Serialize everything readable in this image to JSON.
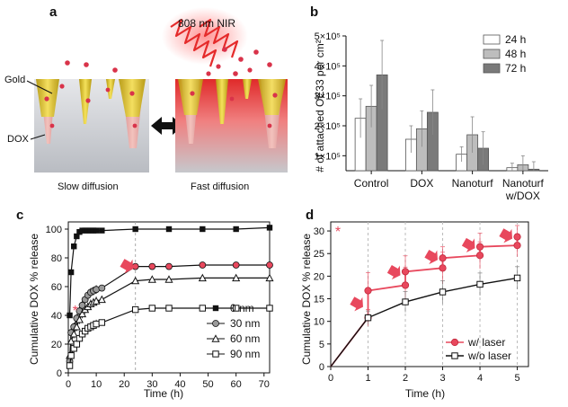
{
  "panel_a": {
    "label": "a",
    "nir_label": "808 nm NIR",
    "gold_label": "Gold",
    "dox_label": "DOX",
    "left_caption": "Slow diffusion",
    "right_caption": "Fast diffusion"
  },
  "colors": {
    "bar_24h": "#ffffff",
    "bar_48h": "#bdbdbd",
    "bar_72h": "#7a7a7a",
    "laser": "#e8485d",
    "no_laser": "#111111",
    "arrow": "#e8485d"
  },
  "chart_data": [
    {
      "id": "b",
      "panel_label": "b",
      "type": "bar",
      "ylabel": "# of attached OE33 per cm²",
      "ylim": [
        50000,
        500000
      ],
      "yticks": [
        100000,
        200000,
        300000,
        400000,
        500000
      ],
      "ytick_labels": [
        "1×10⁵",
        "2×10⁵",
        "3×10⁵",
        "4×10⁵",
        "5×10⁵"
      ],
      "categories": [
        "Control",
        "DOX",
        "Nanoturf",
        "Nanoturf\nw/DOX"
      ],
      "category_labels": [
        "Control",
        "DOX",
        "Nanoturf",
        "Nanoturf",
        "w/DOX"
      ],
      "series": [
        {
          "name": "24 h",
          "values": [
            225000,
            155000,
            105000,
            60000
          ],
          "errors": [
            65000,
            45000,
            25000,
            15000
          ]
        },
        {
          "name": "48 h",
          "values": [
            265000,
            190000,
            170000,
            70000
          ],
          "errors": [
            70000,
            60000,
            60000,
            30000
          ]
        },
        {
          "name": "72 h",
          "values": [
            370000,
            245000,
            125000,
            55000
          ],
          "errors": [
            115000,
            75000,
            55000,
            25000
          ]
        }
      ]
    },
    {
      "id": "c",
      "panel_label": "c",
      "type": "line",
      "xlabel": "Time (h)",
      "ylabel": "Cumulative DOX % release",
      "xlim": [
        0,
        72
      ],
      "ylim": [
        0,
        105
      ],
      "xticks": [
        0,
        10,
        20,
        30,
        40,
        50,
        60,
        70
      ],
      "yticks": [
        0,
        20,
        40,
        60,
        80,
        100
      ],
      "annotation_star": "*",
      "series": [
        {
          "name": "0 nm",
          "marker": "square-filled",
          "x": [
            0.5,
            1,
            2,
            3,
            4,
            5,
            6,
            7,
            8,
            9,
            10,
            12,
            24,
            36,
            48,
            60,
            72
          ],
          "y": [
            40,
            70,
            88,
            95,
            98,
            99,
            99,
            99,
            99,
            99,
            99,
            99,
            100,
            100,
            100,
            100,
            101
          ]
        },
        {
          "name": "30 nm",
          "marker": "circle-grey",
          "x": [
            0.5,
            1,
            2,
            3,
            4,
            5,
            6,
            7,
            8,
            9,
            10,
            12,
            24,
            30,
            36,
            48,
            60,
            72
          ],
          "y": [
            8,
            28,
            32,
            38,
            43,
            47,
            51,
            54,
            56,
            57,
            58,
            59,
            74,
            74,
            74,
            75,
            75,
            75
          ]
        },
        {
          "name": "60 nm",
          "marker": "triangle-open",
          "x": [
            0.5,
            1,
            2,
            3,
            4,
            5,
            6,
            7,
            8,
            9,
            10,
            12,
            24,
            30,
            36,
            48,
            60,
            72
          ],
          "y": [
            12,
            22,
            27,
            32,
            37,
            41,
            44,
            46,
            48,
            49,
            50,
            51,
            64,
            65,
            65,
            66,
            66,
            66
          ]
        },
        {
          "name": "90 nm",
          "marker": "square-open",
          "x": [
            0.5,
            1,
            2,
            3,
            4,
            5,
            6,
            7,
            8,
            9,
            10,
            12,
            24,
            30,
            36,
            48,
            60,
            72
          ],
          "y": [
            5,
            12,
            17,
            20,
            24,
            27,
            29,
            31,
            32,
            33,
            34,
            35,
            44,
            45,
            45,
            45,
            45,
            45
          ]
        }
      ]
    },
    {
      "id": "d",
      "panel_label": "d",
      "type": "line",
      "xlabel": "Time (h)",
      "ylabel": "Cumulative DOX % release",
      "xlim": [
        0,
        5.3
      ],
      "ylim": [
        0,
        32
      ],
      "xticks": [
        0,
        1,
        2,
        3,
        4,
        5
      ],
      "yticks": [
        0,
        5,
        10,
        15,
        20,
        25,
        30
      ],
      "annotation_star": "*",
      "series": [
        {
          "name": "w/ laser",
          "marker": "circle-filled",
          "x": [
            0,
            1,
            1,
            2,
            2,
            3,
            3,
            4,
            4,
            5,
            5
          ],
          "y": [
            0,
            10.8,
            16.8,
            18.0,
            21.0,
            21.8,
            24.0,
            24.6,
            26.5,
            26.8,
            28.7
          ],
          "errors": [
            0,
            1.8,
            4,
            4,
            3.5,
            3.5,
            2.5,
            3,
            3,
            2.5,
            2.5
          ]
        },
        {
          "name": "w/o laser",
          "marker": "square-open",
          "x": [
            0,
            1,
            2,
            3,
            4,
            5
          ],
          "y": [
            0,
            10.8,
            14.3,
            16.5,
            18.2,
            19.6
          ],
          "errors": [
            0,
            1.5,
            2.3,
            2.5,
            2.5,
            2.5
          ]
        }
      ]
    }
  ]
}
